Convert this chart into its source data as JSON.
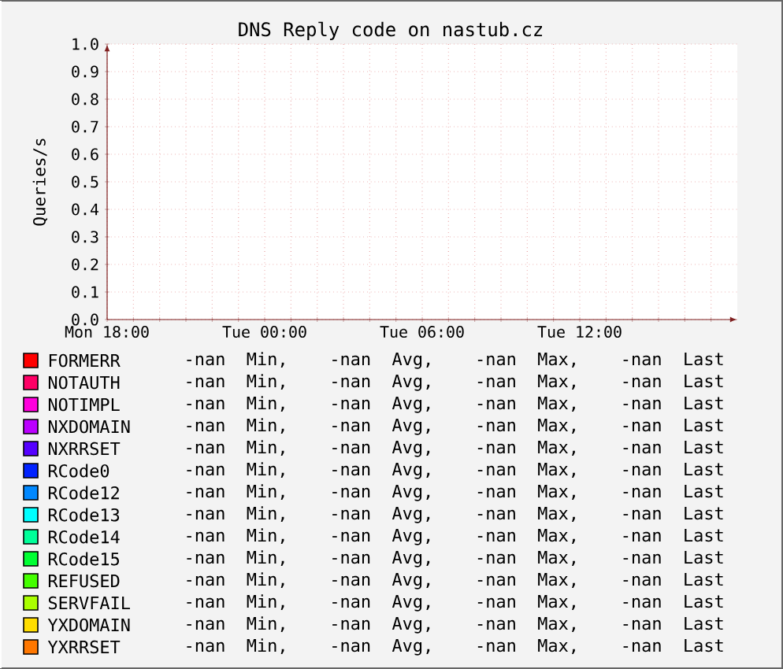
{
  "chart_data": {
    "type": "line",
    "title": "DNS Reply code on nastub.cz",
    "ylabel": "Queries/s",
    "categories": [
      "Mon 18:00",
      null,
      null,
      null,
      null,
      null,
      "Tue 00:00",
      null,
      null,
      null,
      null,
      null,
      "Tue 06:00",
      null,
      null,
      null,
      null,
      null,
      "Tue 12:00",
      null,
      null,
      null,
      null,
      null
    ],
    "ylim": [
      0,
      1
    ],
    "yticks": [
      {
        "value": 0,
        "label": "0.0"
      },
      {
        "value": 0.1,
        "label": "0.1"
      },
      {
        "value": 0.2,
        "label": "0.2"
      },
      {
        "value": 0.3,
        "label": "0.3"
      },
      {
        "value": 0.4,
        "label": "0.4"
      },
      {
        "value": 0.5,
        "label": "0.5"
      },
      {
        "value": 0.6,
        "label": "0.6"
      },
      {
        "value": 0.7,
        "label": "0.7"
      },
      {
        "value": 0.8,
        "label": "0.8"
      },
      {
        "value": 0.9,
        "label": "0.9"
      },
      {
        "value": 1,
        "label": "1.0"
      }
    ],
    "grid": true,
    "legend": "bottom",
    "series": [
      {
        "name": "FORMERR",
        "color": "#ff0000",
        "values": [
          null,
          null,
          null,
          null,
          null,
          null,
          null,
          null,
          null,
          null,
          null,
          null,
          null,
          null,
          null,
          null,
          null,
          null,
          null,
          null,
          null,
          null,
          null,
          null
        ]
      },
      {
        "name": "NOTAUTH",
        "color": "#ff0066",
        "values": [
          null,
          null,
          null,
          null,
          null,
          null,
          null,
          null,
          null,
          null,
          null,
          null,
          null,
          null,
          null,
          null,
          null,
          null,
          null,
          null,
          null,
          null,
          null,
          null
        ]
      },
      {
        "name": "NOTIMPL",
        "color": "#ff00dd",
        "values": [
          null,
          null,
          null,
          null,
          null,
          null,
          null,
          null,
          null,
          null,
          null,
          null,
          null,
          null,
          null,
          null,
          null,
          null,
          null,
          null,
          null,
          null,
          null,
          null
        ]
      },
      {
        "name": "NXDOMAIN",
        "color": "#bb00ff",
        "values": [
          null,
          null,
          null,
          null,
          null,
          null,
          null,
          null,
          null,
          null,
          null,
          null,
          null,
          null,
          null,
          null,
          null,
          null,
          null,
          null,
          null,
          null,
          null,
          null
        ]
      },
      {
        "name": "NXRRSET",
        "color": "#5500ff",
        "values": [
          null,
          null,
          null,
          null,
          null,
          null,
          null,
          null,
          null,
          null,
          null,
          null,
          null,
          null,
          null,
          null,
          null,
          null,
          null,
          null,
          null,
          null,
          null,
          null
        ]
      },
      {
        "name": "RCode0",
        "color": "#0022ff",
        "values": [
          null,
          null,
          null,
          null,
          null,
          null,
          null,
          null,
          null,
          null,
          null,
          null,
          null,
          null,
          null,
          null,
          null,
          null,
          null,
          null,
          null,
          null,
          null,
          null
        ]
      },
      {
        "name": "RCode12",
        "color": "#0088ff",
        "values": [
          null,
          null,
          null,
          null,
          null,
          null,
          null,
          null,
          null,
          null,
          null,
          null,
          null,
          null,
          null,
          null,
          null,
          null,
          null,
          null,
          null,
          null,
          null,
          null
        ]
      },
      {
        "name": "RCode13",
        "color": "#00ffff",
        "values": [
          null,
          null,
          null,
          null,
          null,
          null,
          null,
          null,
          null,
          null,
          null,
          null,
          null,
          null,
          null,
          null,
          null,
          null,
          null,
          null,
          null,
          null,
          null,
          null
        ]
      },
      {
        "name": "RCode14",
        "color": "#00ff99",
        "values": [
          null,
          null,
          null,
          null,
          null,
          null,
          null,
          null,
          null,
          null,
          null,
          null,
          null,
          null,
          null,
          null,
          null,
          null,
          null,
          null,
          null,
          null,
          null,
          null
        ]
      },
      {
        "name": "RCode15",
        "color": "#00ff33",
        "values": [
          null,
          null,
          null,
          null,
          null,
          null,
          null,
          null,
          null,
          null,
          null,
          null,
          null,
          null,
          null,
          null,
          null,
          null,
          null,
          null,
          null,
          null,
          null,
          null
        ]
      },
      {
        "name": "REFUSED",
        "color": "#44ff00",
        "values": [
          null,
          null,
          null,
          null,
          null,
          null,
          null,
          null,
          null,
          null,
          null,
          null,
          null,
          null,
          null,
          null,
          null,
          null,
          null,
          null,
          null,
          null,
          null,
          null
        ]
      },
      {
        "name": "SERVFAIL",
        "color": "#aaff00",
        "values": [
          null,
          null,
          null,
          null,
          null,
          null,
          null,
          null,
          null,
          null,
          null,
          null,
          null,
          null,
          null,
          null,
          null,
          null,
          null,
          null,
          null,
          null,
          null,
          null
        ]
      },
      {
        "name": "YXDOMAIN",
        "color": "#ffdd00",
        "values": [
          null,
          null,
          null,
          null,
          null,
          null,
          null,
          null,
          null,
          null,
          null,
          null,
          null,
          null,
          null,
          null,
          null,
          null,
          null,
          null,
          null,
          null,
          null,
          null
        ]
      },
      {
        "name": "YXRRSET",
        "color": "#ff7700",
        "values": [
          null,
          null,
          null,
          null,
          null,
          null,
          null,
          null,
          null,
          null,
          null,
          null,
          null,
          null,
          null,
          null,
          null,
          null,
          null,
          null,
          null,
          null,
          null,
          null
        ]
      }
    ],
    "annotations": [
      "-nan  Min,    -nan  Avg,    -nan  Max,    -nan  Last",
      "-nan  Min,    -nan  Avg,    -nan  Max,    -nan  Last",
      "-nan  Min,    -nan  Avg,    -nan  Max,    -nan  Last",
      "-nan  Min,    -nan  Avg,    -nan  Max,    -nan  Last",
      "-nan  Min,    -nan  Avg,    -nan  Max,    -nan  Last",
      "-nan  Min,    -nan  Avg,    -nan  Max,    -nan  Last",
      "-nan  Min,    -nan  Avg,    -nan  Max,    -nan  Last",
      "-nan  Min,    -nan  Avg,    -nan  Max,    -nan  Last",
      "-nan  Min,    -nan  Avg,    -nan  Max,    -nan  Last",
      "-nan  Min,    -nan  Avg,    -nan  Max,    -nan  Last",
      "-nan  Min,    -nan  Avg,    -nan  Max,    -nan  Last",
      "-nan  Min,    -nan  Avg,    -nan  Max,    -nan  Last",
      "-nan  Min,    -nan  Avg,    -nan  Max,    -nan  Last",
      "-nan  Min,    -nan  Avg,    -nan  Max,    -nan  Last"
    ]
  }
}
